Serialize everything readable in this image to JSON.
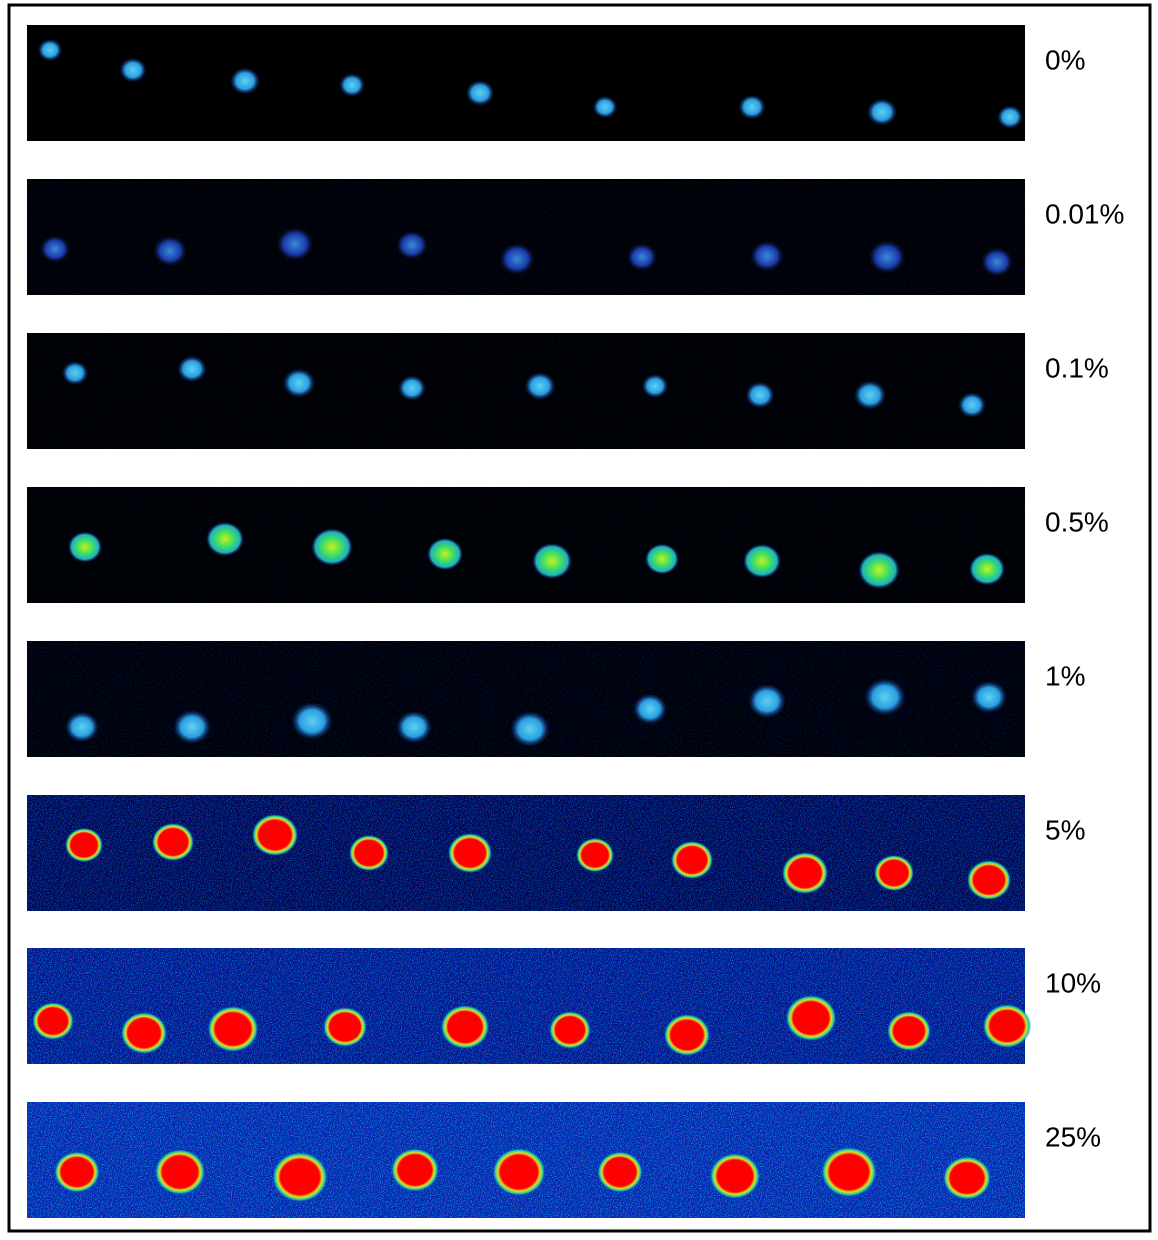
{
  "panels": [
    {
      "label": "0%"
    },
    {
      "label": "0.01%"
    },
    {
      "label": "0.1%"
    },
    {
      "label": "0.5%"
    },
    {
      "label": "1%"
    },
    {
      "label": "5%"
    },
    {
      "label": "10%"
    },
    {
      "label": "25%"
    }
  ]
}
